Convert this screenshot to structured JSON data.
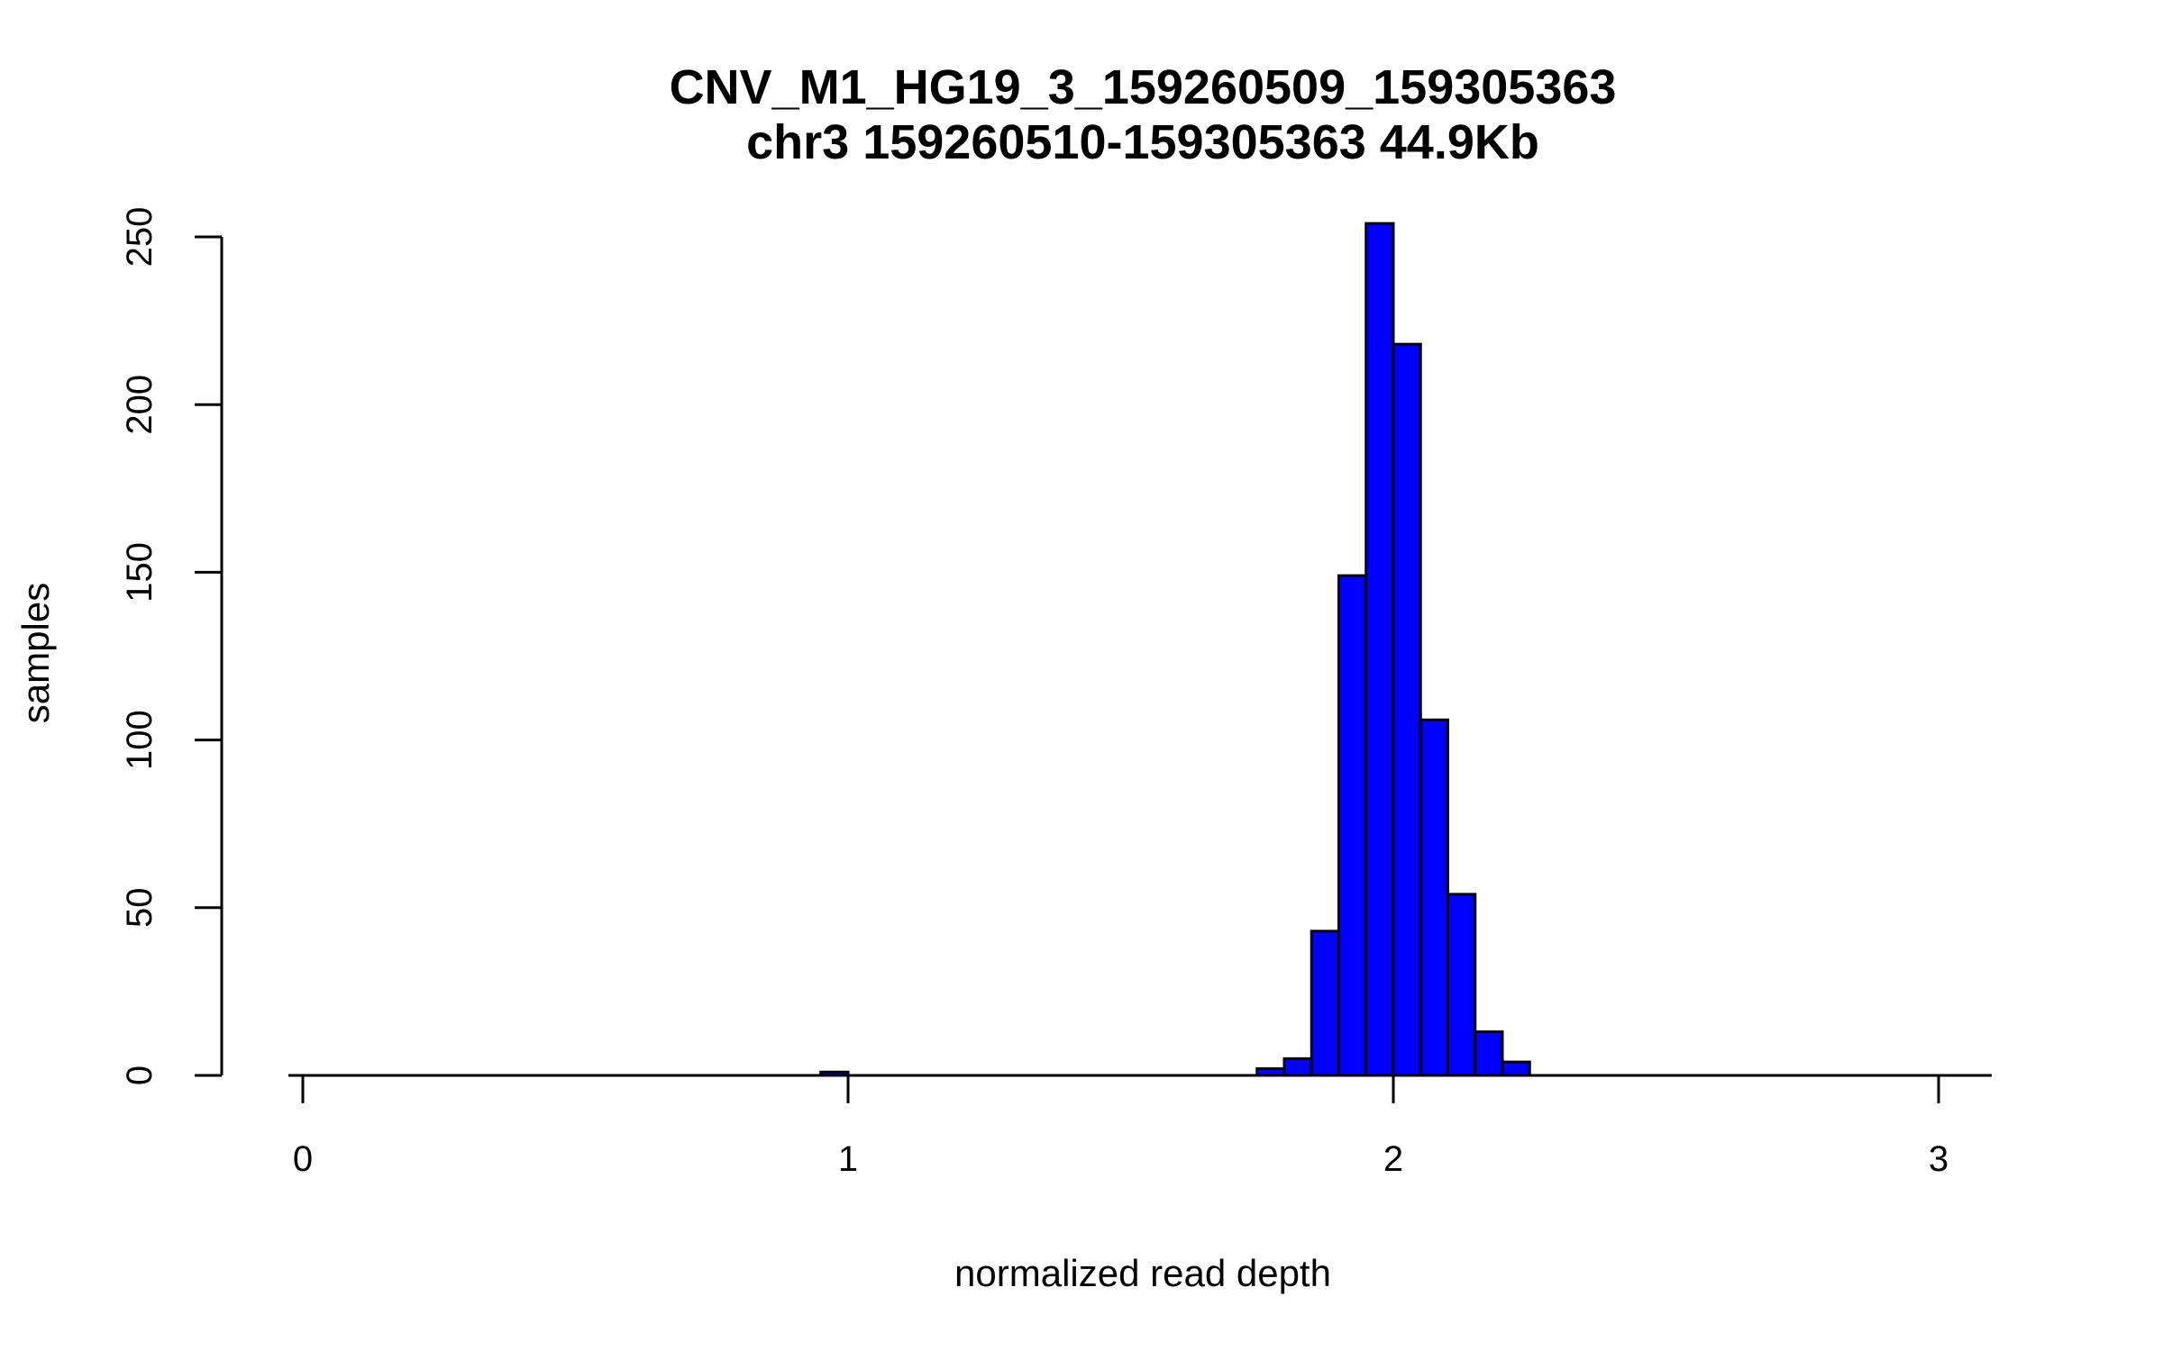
{
  "chart_data": {
    "type": "bar",
    "subtype": "histogram",
    "title": "CNV_M1_HG19_3_159260509_159305363",
    "subtitle": "chr3 159260510-159305363 44.9Kb",
    "xlabel": "normalized read depth",
    "ylabel": "samples",
    "xlim": [
      0,
      3.1
    ],
    "ylim": [
      0,
      254
    ],
    "bin_width": 0.05,
    "bar_color": "#0000ff",
    "x_ticks": [
      0,
      1,
      2,
      3
    ],
    "x_tick_labels": [
      "0",
      "1",
      "2",
      "3"
    ],
    "y_ticks": [
      0,
      50,
      100,
      150,
      200,
      250
    ],
    "y_tick_labels": [
      "0",
      "50",
      "100",
      "150",
      "200",
      "250"
    ],
    "bins": [
      {
        "start": 0.95,
        "end": 1.0,
        "count": 1
      },
      {
        "start": 1.75,
        "end": 1.8,
        "count": 2
      },
      {
        "start": 1.8,
        "end": 1.85,
        "count": 5
      },
      {
        "start": 1.85,
        "end": 1.9,
        "count": 43
      },
      {
        "start": 1.9,
        "end": 1.95,
        "count": 149
      },
      {
        "start": 1.95,
        "end": 2.0,
        "count": 254
      },
      {
        "start": 2.0,
        "end": 2.05,
        "count": 218
      },
      {
        "start": 2.05,
        "end": 2.1,
        "count": 106
      },
      {
        "start": 2.1,
        "end": 2.15,
        "count": 54
      },
      {
        "start": 2.15,
        "end": 2.2,
        "count": 13
      },
      {
        "start": 2.2,
        "end": 2.25,
        "count": 4
      }
    ]
  }
}
